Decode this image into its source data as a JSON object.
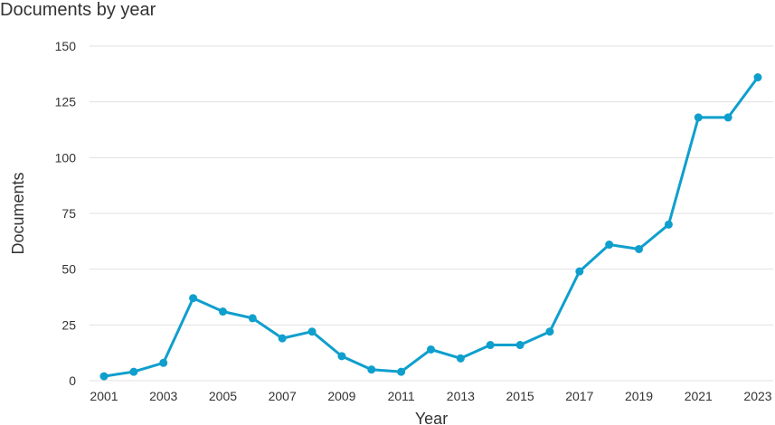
{
  "chart_data": {
    "type": "line",
    "title": "Documents by year",
    "xlabel": "Year",
    "ylabel": "Documents",
    "x": [
      2001,
      2002,
      2003,
      2004,
      2005,
      2006,
      2007,
      2008,
      2009,
      2010,
      2011,
      2012,
      2013,
      2014,
      2015,
      2016,
      2017,
      2018,
      2019,
      2020,
      2021,
      2022,
      2023
    ],
    "x_tick_labels": [
      "2001",
      "2003",
      "2005",
      "2007",
      "2009",
      "2011",
      "2013",
      "2015",
      "2017",
      "2019",
      "2021",
      "2023"
    ],
    "y_ticks": [
      0,
      25,
      50,
      75,
      100,
      125,
      150
    ],
    "ylim": [
      0,
      150
    ],
    "series": [
      {
        "values": [
          2,
          4,
          8,
          37,
          31,
          28,
          19,
          22,
          11,
          5,
          4,
          14,
          10,
          16,
          16,
          22,
          49,
          61,
          59,
          70,
          118,
          118,
          136
        ]
      }
    ],
    "grid": "horizontal",
    "line_color": "#0f9fcd"
  }
}
